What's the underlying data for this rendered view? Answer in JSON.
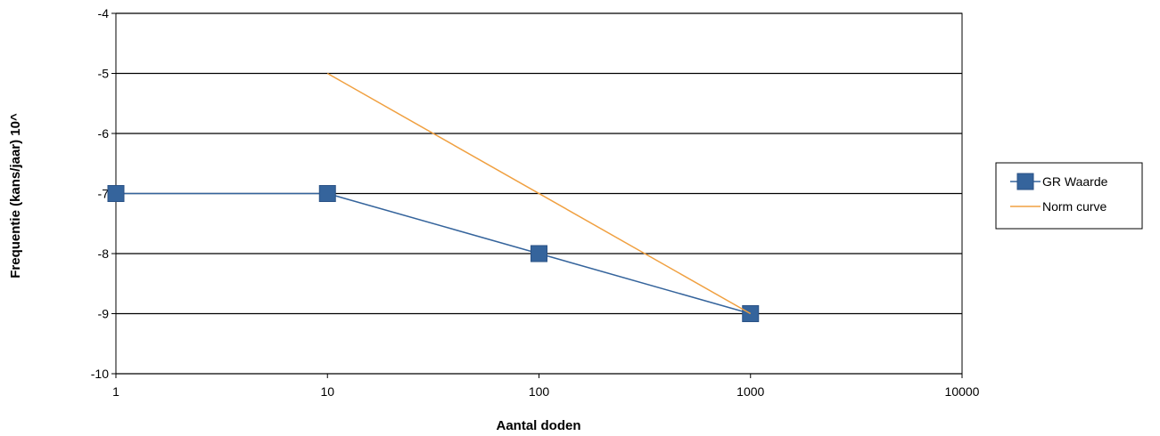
{
  "chart_data": {
    "type": "line",
    "title": "",
    "xlabel": "Aantal doden",
    "ylabel": "Frequentie (kans/jaar) 10^",
    "x_scale": "log",
    "xlim": [
      1,
      10000
    ],
    "ylim": [
      -10,
      -4
    ],
    "x_ticks": [
      "1",
      "10",
      "100",
      "1000",
      "10000"
    ],
    "y_ticks": [
      "-4",
      "-5",
      "-6",
      "-7",
      "-8",
      "-9",
      "-10"
    ],
    "grid": "horizontal",
    "legend_position": "right",
    "series": [
      {
        "name": "GR Waarde",
        "color": "#35649c",
        "marker": "square",
        "x": [
          1,
          10,
          100,
          1000
        ],
        "y": [
          -7,
          -7,
          -8,
          -9
        ]
      },
      {
        "name": "Norm curve",
        "color": "#f0a040",
        "marker": "none",
        "x": [
          10,
          1000
        ],
        "y": [
          -5,
          -9
        ]
      }
    ]
  }
}
